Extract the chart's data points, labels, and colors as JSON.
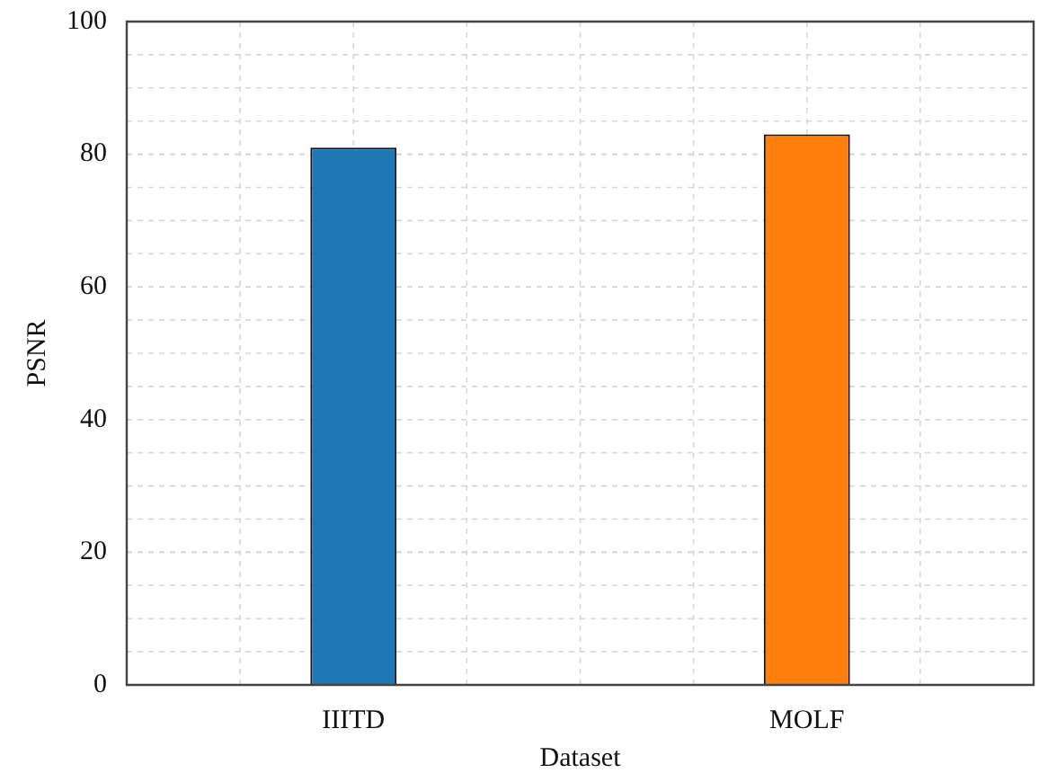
{
  "chart_data": {
    "type": "bar",
    "xlabel": "Dataset",
    "ylabel": "PSNR",
    "categories": [
      "IIITD",
      "MOLF"
    ],
    "values": [
      81,
      83
    ],
    "colors": [
      "#1f77b4",
      "#ff7f0e"
    ],
    "ylim": [
      0,
      100
    ],
    "yticks": [
      0,
      20,
      40,
      60,
      80,
      100
    ],
    "grid": true
  }
}
